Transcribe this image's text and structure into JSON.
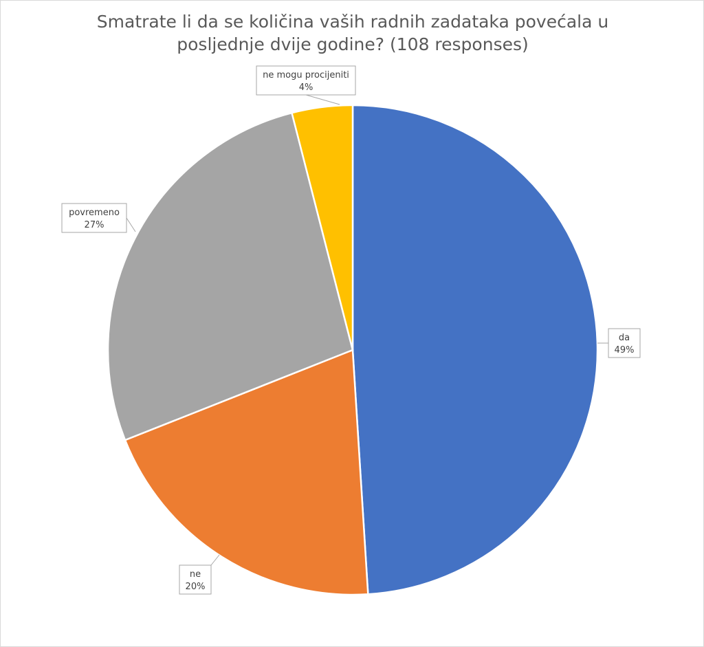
{
  "chart_data": {
    "type": "pie",
    "title_lines": [
      "Smatrate li da se količina vaših radnih zadataka povećala u",
      "posljednje dvije godine? (108 responses)"
    ],
    "start_angle_deg": 0,
    "direction": "clockwise",
    "slices": [
      {
        "label": "da",
        "value": 49,
        "value_label": "49%",
        "color": "#4472C4"
      },
      {
        "label": "ne",
        "value": 20,
        "value_label": "20%",
        "color": "#ED7D31"
      },
      {
        "label": "povremeno",
        "value": 27,
        "value_label": "27%",
        "color": "#A5A5A5"
      },
      {
        "label": "ne mogu procijeniti",
        "value": 4,
        "value_label": "4%",
        "color": "#FFC000"
      }
    ],
    "legend": "none",
    "data_labels": "callouts with category name and percentage"
  }
}
